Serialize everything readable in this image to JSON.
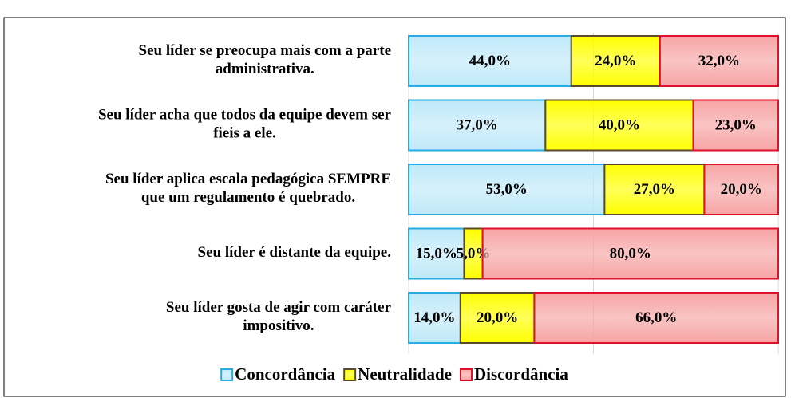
{
  "chart_data": {
    "type": "stacked_bar_horizontal",
    "categories": [
      "Seu líder se preocupa mais com a parte\nadministrativa.",
      "Seu líder acha que todos da equipe devem ser\nfieis a ele.",
      "Seu líder aplica escala pedagógica SEMPRE\nque um regulamento é quebrado.",
      "Seu líder é distante da equipe.",
      "Seu líder gosta de agir com caráter\nimpositivo."
    ],
    "series": [
      {
        "name": "Concordância",
        "color": "#bfe9f9",
        "edge_color": "#29abe2",
        "values": [
          44,
          37,
          53,
          15,
          14
        ],
        "value_labels": [
          "44,0%",
          "37,0%",
          "53,0%",
          "15,0%",
          "14,0%"
        ]
      },
      {
        "name": "Neutralidade",
        "color": "#ffff00",
        "edge_color": "#5c4a2e",
        "values": [
          24,
          40,
          27,
          5,
          20
        ],
        "value_labels": [
          "24,0%",
          "40,0%",
          "27,0%",
          "5,0%",
          "20,0%"
        ]
      },
      {
        "name": "Discordância",
        "color": "#f7a4a4",
        "edge_color": "#e0102a",
        "values": [
          32,
          23,
          20,
          80,
          66
        ],
        "value_labels": [
          "32,0%",
          "23,0%",
          "20,0%",
          "80,0%",
          "66,0%"
        ]
      }
    ],
    "xlim": [
      0,
      100
    ],
    "xticks": [
      0,
      50,
      100
    ],
    "grid": true,
    "legend": "bottom"
  }
}
